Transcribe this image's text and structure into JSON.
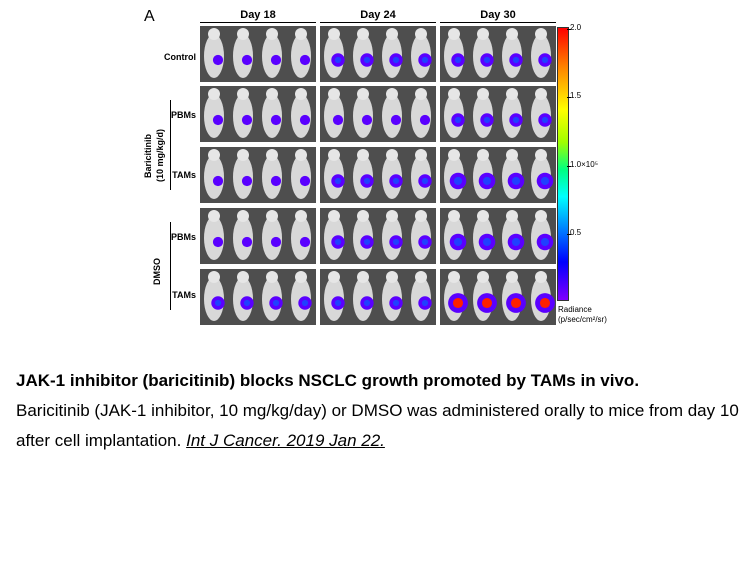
{
  "panel_letter": "A",
  "days": [
    "Day 18",
    "Day 24",
    "Day 30"
  ],
  "rows": {
    "control": "Control",
    "bari_pbms": "PBMs",
    "bari_tams": "TAMs",
    "dmso_pbms": "PBMs",
    "dmso_tams": "TAMs"
  },
  "groups": {
    "baricitinib": "Baricitinib",
    "baricitinib_dose": "(10 mg/kg/d)",
    "dmso": "DMSO"
  },
  "colorbar": {
    "ticks": [
      "2.0",
      "1.5",
      "1.0×10⁵",
      "0.5"
    ],
    "units_line1": "Radiance",
    "units_line2": "(p/sec/cm²/sr)",
    "colors": [
      "#ff0000",
      "#ffff00",
      "#00ff80",
      "#00ffff",
      "#0000ff",
      "#8000ff"
    ]
  },
  "caption": {
    "title": "JAK-1 inhibitor (baricitinib) blocks NSCLC growth promoted by TAMs in vivo.",
    "body": "Baricitinib (JAK-1 inhibitor, 10 mg/kg/day) or DMSO was administered orally to mice from day 10 after cell implantation.",
    "citation": "Int J Cancer. 2019 Jan 22."
  }
}
